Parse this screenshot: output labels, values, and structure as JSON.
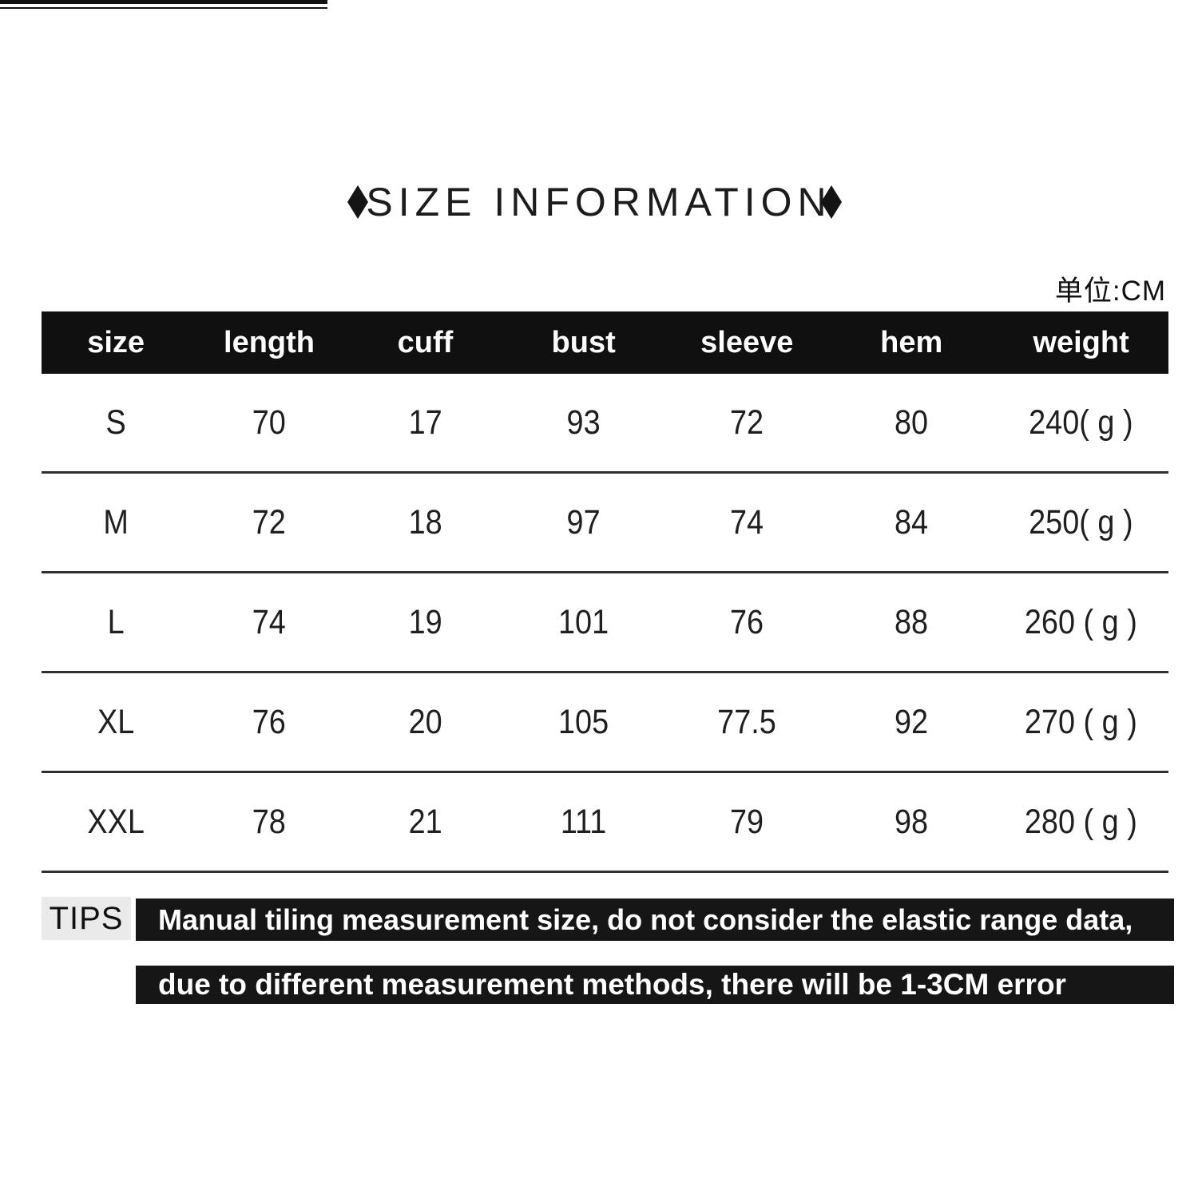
{
  "title": "SIZE INFORMATION",
  "unit_label": "单位:CM",
  "table": {
    "headers": [
      "size",
      "length",
      "cuff",
      "bust",
      "sleeve",
      "hem",
      "weight"
    ],
    "rows": [
      [
        "S",
        "70",
        "17",
        "93",
        "72",
        "80",
        "240( g )"
      ],
      [
        "M",
        "72",
        "18",
        "97",
        "74",
        "84",
        "250( g )"
      ],
      [
        "L",
        "74",
        "19",
        "101",
        "76",
        "88",
        "260 ( g )"
      ],
      [
        "XL",
        "76",
        "20",
        "105",
        "77.5",
        "92",
        "270 ( g )"
      ],
      [
        "XXL",
        "78",
        "21",
        "111",
        "79",
        "98",
        "280 ( g )"
      ]
    ]
  },
  "tips": {
    "label": "TIPS",
    "line1": "Manual tiling measurement size, do not consider the elastic range data,",
    "line2": "due to different measurement methods, there will be 1-3CM error"
  },
  "colors": {
    "header_bg": "#101010",
    "tips_bar_bg": "#161616",
    "tips_label_bg": "#eaeaea",
    "text": "#1c1c1c"
  }
}
